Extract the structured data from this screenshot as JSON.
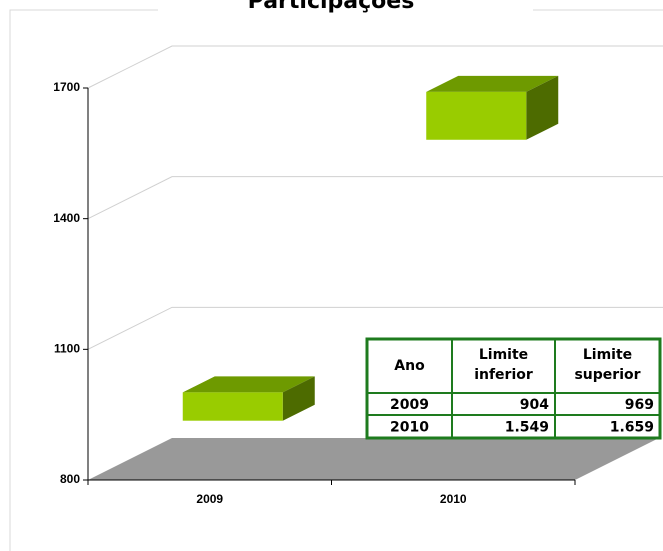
{
  "chart_data": {
    "type": "range_bar",
    "title": "Participações",
    "table_header": "Ano",
    "categories": [
      "2009",
      "2010"
    ],
    "series": [
      {
        "name": "Limite inferior",
        "color": "#99cc00",
        "values": [
          904,
          1549
        ],
        "value_labels": [
          "904",
          "1.549"
        ]
      },
      {
        "name": "Limite superior",
        "color": "#99cc00",
        "values": [
          969,
          1659
        ],
        "value_labels": [
          "969",
          "1.659"
        ]
      }
    ],
    "ylim": [
      800,
      1700
    ],
    "yticks": [
      800,
      1100,
      1400,
      1700
    ],
    "grid": true
  }
}
